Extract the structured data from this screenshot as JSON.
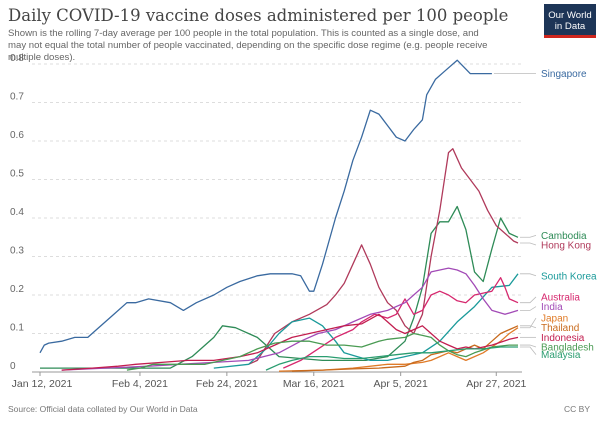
{
  "header": {
    "title": "Daily COVID-19 vaccine doses administered per 100 people",
    "subtitle": "Shown is the rolling 7-day average per 100 people in the total population. This is counted as a single dose, and may not equal the total number of people vaccinated, depending on the specific dose regime (e.g. people receive multiple doses).",
    "logo_line1": "Our World",
    "logo_line2": "in Data"
  },
  "footer": {
    "source": "Source: Official data collated by Our World in Data",
    "license": "CC BY"
  },
  "chart_data": {
    "type": "line",
    "x_tick_labels": [
      "Jan 12, 2021",
      "Feb 4, 2021",
      "Feb 24, 2021",
      "Mar 16, 2021",
      "Apr 5, 2021",
      "Apr 27, 2021"
    ],
    "x_tick_days": [
      0,
      23,
      43,
      63,
      83,
      105
    ],
    "y_ticks": [
      0,
      0.1,
      0.2,
      0.3,
      0.4,
      0.5,
      0.6,
      0.7,
      0.8
    ],
    "ylim": [
      0,
      0.85
    ],
    "grid": "horizontal dashed",
    "legend": "right, labels at line ends",
    "series": [
      {
        "name": "Singapore",
        "color": "#3a6aa0",
        "label_y": 0.775,
        "points": [
          [
            0,
            0.05
          ],
          [
            1,
            0.07
          ],
          [
            2,
            0.075
          ],
          [
            5,
            0.08
          ],
          [
            8,
            0.09
          ],
          [
            11,
            0.09
          ],
          [
            13,
            0.11
          ],
          [
            17,
            0.15
          ],
          [
            20,
            0.18
          ],
          [
            22,
            0.18
          ],
          [
            25,
            0.19
          ],
          [
            30,
            0.18
          ],
          [
            33,
            0.16
          ],
          [
            36,
            0.18
          ],
          [
            40,
            0.2
          ],
          [
            43,
            0.22
          ],
          [
            46,
            0.235
          ],
          [
            50,
            0.25
          ],
          [
            53,
            0.255
          ],
          [
            55,
            0.255
          ],
          [
            58,
            0.255
          ],
          [
            60,
            0.25
          ],
          [
            62,
            0.21
          ],
          [
            63,
            0.21
          ],
          [
            65,
            0.28
          ],
          [
            68,
            0.4
          ],
          [
            70,
            0.47
          ],
          [
            72,
            0.55
          ],
          [
            74,
            0.61
          ],
          [
            76,
            0.68
          ],
          [
            78,
            0.67
          ],
          [
            80,
            0.64
          ],
          [
            82,
            0.61
          ],
          [
            84,
            0.6
          ],
          [
            86,
            0.63
          ],
          [
            88,
            0.655
          ],
          [
            89,
            0.72
          ],
          [
            91,
            0.76
          ],
          [
            93,
            0.78
          ],
          [
            96,
            0.81
          ],
          [
            99,
            0.775
          ],
          [
            104,
            0.775
          ]
        ]
      },
      {
        "name": "Cambodia",
        "color": "#2e8b57",
        "label_y": 0.355,
        "points": [
          [
            0,
            0.01
          ],
          [
            25,
            0.01
          ],
          [
            30,
            0.01
          ],
          [
            35,
            0.04
          ],
          [
            40,
            0.09
          ],
          [
            42,
            0.12
          ],
          [
            45,
            0.115
          ],
          [
            50,
            0.09
          ],
          [
            53,
            0.06
          ],
          [
            55,
            0.04
          ],
          [
            60,
            0.035
          ],
          [
            65,
            0.03
          ],
          [
            70,
            0.03
          ],
          [
            75,
            0.03
          ],
          [
            80,
            0.04
          ],
          [
            84,
            0.08
          ],
          [
            86,
            0.14
          ],
          [
            88,
            0.22
          ],
          [
            90,
            0.36
          ],
          [
            92,
            0.39
          ],
          [
            94,
            0.39
          ],
          [
            96,
            0.43
          ],
          [
            98,
            0.37
          ],
          [
            100,
            0.26
          ],
          [
            102,
            0.235
          ],
          [
            104,
            0.32
          ],
          [
            106,
            0.4
          ],
          [
            108,
            0.36
          ],
          [
            110,
            0.35
          ]
        ]
      },
      {
        "name": "Hong Kong",
        "color": "#b03a5b",
        "label_y": 0.33,
        "points": [
          [
            48,
            0.02
          ],
          [
            50,
            0.03
          ],
          [
            54,
            0.1
          ],
          [
            58,
            0.13
          ],
          [
            62,
            0.15
          ],
          [
            66,
            0.175
          ],
          [
            68,
            0.2
          ],
          [
            70,
            0.23
          ],
          [
            72,
            0.28
          ],
          [
            74,
            0.33
          ],
          [
            76,
            0.28
          ],
          [
            78,
            0.22
          ],
          [
            80,
            0.18
          ],
          [
            82,
            0.16
          ],
          [
            84,
            0.12
          ],
          [
            86,
            0.1
          ],
          [
            88,
            0.15
          ],
          [
            90,
            0.3
          ],
          [
            92,
            0.42
          ],
          [
            94,
            0.57
          ],
          [
            95,
            0.58
          ],
          [
            97,
            0.53
          ],
          [
            99,
            0.5
          ],
          [
            101,
            0.47
          ],
          [
            103,
            0.42
          ],
          [
            105,
            0.38
          ],
          [
            107,
            0.36
          ],
          [
            109,
            0.34
          ],
          [
            110,
            0.335
          ]
        ]
      },
      {
        "name": "South Korea",
        "color": "#1a9a9a",
        "label_y": 0.25,
        "points": [
          [
            40,
            0.01
          ],
          [
            48,
            0.02
          ],
          [
            52,
            0.06
          ],
          [
            55,
            0.1
          ],
          [
            58,
            0.13
          ],
          [
            62,
            0.14
          ],
          [
            65,
            0.12
          ],
          [
            68,
            0.08
          ],
          [
            70,
            0.05
          ],
          [
            73,
            0.04
          ],
          [
            76,
            0.03
          ],
          [
            80,
            0.03
          ],
          [
            84,
            0.04
          ],
          [
            88,
            0.05
          ],
          [
            92,
            0.08
          ],
          [
            96,
            0.13
          ],
          [
            100,
            0.17
          ],
          [
            104,
            0.22
          ],
          [
            108,
            0.225
          ],
          [
            110,
            0.255
          ]
        ]
      },
      {
        "name": "Australia",
        "color": "#d6286e",
        "label_y": 0.195,
        "points": [
          [
            56,
            0.01
          ],
          [
            60,
            0.03
          ],
          [
            64,
            0.06
          ],
          [
            68,
            0.09
          ],
          [
            72,
            0.11
          ],
          [
            74,
            0.13
          ],
          [
            77,
            0.15
          ],
          [
            80,
            0.14
          ],
          [
            82,
            0.15
          ],
          [
            84,
            0.19
          ],
          [
            86,
            0.15
          ],
          [
            88,
            0.16
          ],
          [
            90,
            0.2
          ],
          [
            92,
            0.21
          ],
          [
            94,
            0.2
          ],
          [
            96,
            0.185
          ],
          [
            98,
            0.18
          ],
          [
            100,
            0.2
          ],
          [
            104,
            0.21
          ],
          [
            106,
            0.245
          ],
          [
            107,
            0.22
          ],
          [
            108,
            0.19
          ],
          [
            110,
            0.18
          ]
        ]
      },
      {
        "name": "India",
        "color": "#a24ab6",
        "label_y": 0.17,
        "points": [
          [
            5,
            0.005
          ],
          [
            15,
            0.01
          ],
          [
            25,
            0.015
          ],
          [
            32,
            0.02
          ],
          [
            40,
            0.025
          ],
          [
            48,
            0.03
          ],
          [
            55,
            0.05
          ],
          [
            60,
            0.08
          ],
          [
            64,
            0.1
          ],
          [
            68,
            0.11
          ],
          [
            72,
            0.13
          ],
          [
            76,
            0.15
          ],
          [
            80,
            0.16
          ],
          [
            84,
            0.18
          ],
          [
            86,
            0.2
          ],
          [
            88,
            0.22
          ],
          [
            90,
            0.26
          ],
          [
            92,
            0.265
          ],
          [
            94,
            0.27
          ],
          [
            96,
            0.265
          ],
          [
            98,
            0.255
          ],
          [
            100,
            0.225
          ],
          [
            102,
            0.19
          ],
          [
            104,
            0.16
          ],
          [
            107,
            0.15
          ],
          [
            110,
            0.16
          ]
        ]
      },
      {
        "name": "Japan",
        "color": "#e07b28",
        "label_y": 0.14,
        "points": [
          [
            55,
            0.002
          ],
          [
            65,
            0.005
          ],
          [
            72,
            0.01
          ],
          [
            80,
            0.02
          ],
          [
            84,
            0.02
          ],
          [
            88,
            0.025
          ],
          [
            90,
            0.03
          ],
          [
            92,
            0.04
          ],
          [
            94,
            0.05
          ],
          [
            96,
            0.04
          ],
          [
            98,
            0.03
          ],
          [
            100,
            0.04
          ],
          [
            102,
            0.05
          ],
          [
            104,
            0.065
          ],
          [
            106,
            0.08
          ],
          [
            108,
            0.1
          ],
          [
            110,
            0.115
          ]
        ]
      },
      {
        "name": "Thailand",
        "color": "#c86a1d",
        "label_y": 0.115,
        "points": [
          [
            58,
            0.002
          ],
          [
            65,
            0.005
          ],
          [
            72,
            0.008
          ],
          [
            78,
            0.01
          ],
          [
            84,
            0.015
          ],
          [
            86,
            0.025
          ],
          [
            88,
            0.03
          ],
          [
            90,
            0.045
          ],
          [
            92,
            0.05
          ],
          [
            94,
            0.055
          ],
          [
            96,
            0.05
          ],
          [
            98,
            0.06
          ],
          [
            100,
            0.07
          ],
          [
            102,
            0.06
          ],
          [
            104,
            0.08
          ],
          [
            106,
            0.1
          ],
          [
            108,
            0.11
          ],
          [
            110,
            0.12
          ]
        ]
      },
      {
        "name": "Indonesia",
        "color": "#c21e4f",
        "label_y": 0.09,
        "points": [
          [
            5,
            0.005
          ],
          [
            12,
            0.01
          ],
          [
            18,
            0.015
          ],
          [
            22,
            0.02
          ],
          [
            28,
            0.025
          ],
          [
            34,
            0.03
          ],
          [
            40,
            0.03
          ],
          [
            46,
            0.04
          ],
          [
            50,
            0.05
          ],
          [
            54,
            0.07
          ],
          [
            58,
            0.09
          ],
          [
            62,
            0.1
          ],
          [
            66,
            0.11
          ],
          [
            70,
            0.12
          ],
          [
            74,
            0.125
          ],
          [
            78,
            0.15
          ],
          [
            80,
            0.13
          ],
          [
            82,
            0.11
          ],
          [
            84,
            0.1
          ],
          [
            86,
            0.11
          ],
          [
            88,
            0.12
          ],
          [
            90,
            0.1
          ],
          [
            92,
            0.08
          ],
          [
            94,
            0.07
          ],
          [
            96,
            0.06
          ],
          [
            98,
            0.065
          ],
          [
            100,
            0.06
          ],
          [
            104,
            0.07
          ],
          [
            108,
            0.085
          ],
          [
            110,
            0.09
          ]
        ]
      },
      {
        "name": "Bangladesh",
        "color": "#4a9b53",
        "label_y": 0.065,
        "points": [
          [
            20,
            0.005
          ],
          [
            23,
            0.01
          ],
          [
            26,
            0.02
          ],
          [
            30,
            0.02
          ],
          [
            34,
            0.02
          ],
          [
            38,
            0.02
          ],
          [
            42,
            0.03
          ],
          [
            46,
            0.04
          ],
          [
            50,
            0.06
          ],
          [
            54,
            0.075
          ],
          [
            58,
            0.08
          ],
          [
            62,
            0.08
          ],
          [
            66,
            0.07
          ],
          [
            70,
            0.07
          ],
          [
            74,
            0.065
          ],
          [
            78,
            0.08
          ],
          [
            80,
            0.085
          ],
          [
            84,
            0.09
          ],
          [
            86,
            0.1
          ],
          [
            88,
            0.095
          ],
          [
            90,
            0.09
          ],
          [
            92,
            0.07
          ],
          [
            94,
            0.055
          ],
          [
            96,
            0.045
          ],
          [
            98,
            0.04
          ],
          [
            100,
            0.05
          ],
          [
            104,
            0.065
          ],
          [
            108,
            0.07
          ],
          [
            110,
            0.07
          ]
        ]
      },
      {
        "name": "Malaysia",
        "color": "#2a9d70",
        "label_y": 0.045,
        "points": [
          [
            52,
            0.005
          ],
          [
            55,
            0.02
          ],
          [
            58,
            0.03
          ],
          [
            62,
            0.04
          ],
          [
            66,
            0.04
          ],
          [
            70,
            0.035
          ],
          [
            74,
            0.035
          ],
          [
            78,
            0.04
          ],
          [
            82,
            0.045
          ],
          [
            86,
            0.05
          ],
          [
            90,
            0.05
          ],
          [
            94,
            0.055
          ],
          [
            98,
            0.06
          ],
          [
            102,
            0.06
          ],
          [
            106,
            0.065
          ],
          [
            110,
            0.065
          ]
        ]
      }
    ]
  }
}
